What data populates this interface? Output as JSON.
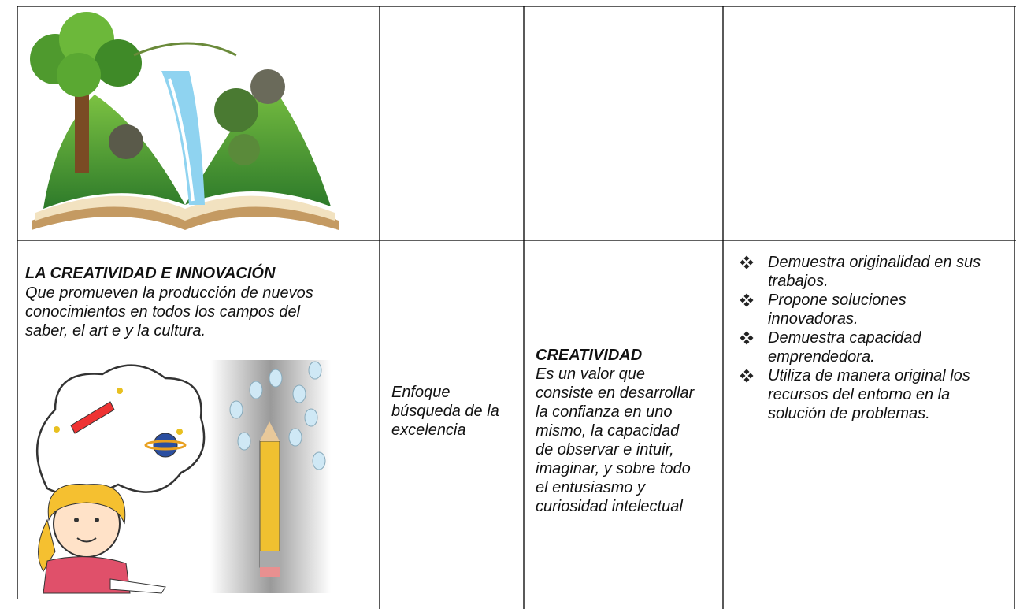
{
  "value_cell": {
    "title": "LA CREATIVIDAD E INNOVACIÓN",
    "description_lines": [
      "Que promueven la producción de nuevos",
      "conocimientos en todos los campos del",
      "saber, el art e y la cultura."
    ]
  },
  "approach_lines": [
    "Enfoque",
    "búsqueda de la",
    "excelencia"
  ],
  "value_definition": {
    "title": "CREATIVIDAD",
    "lines": [
      "Es un valor que",
      "consiste en desarrollar",
      "la confianza en uno",
      "mismo, la capacidad",
      "de observar e intuir,",
      "imaginar, y sobre todo",
      "el entusiasmo y",
      "curiosidad intelectual"
    ]
  },
  "actions": [
    [
      "Demuestra originalidad en sus",
      "trabajos."
    ],
    [
      "Propone soluciones",
      "innovadoras."
    ],
    [
      "Demuestra capacidad",
      "emprendedora."
    ],
    [
      "Utiliza de manera original los",
      "recursos del entorno en la",
      "solución de problemas."
    ]
  ]
}
